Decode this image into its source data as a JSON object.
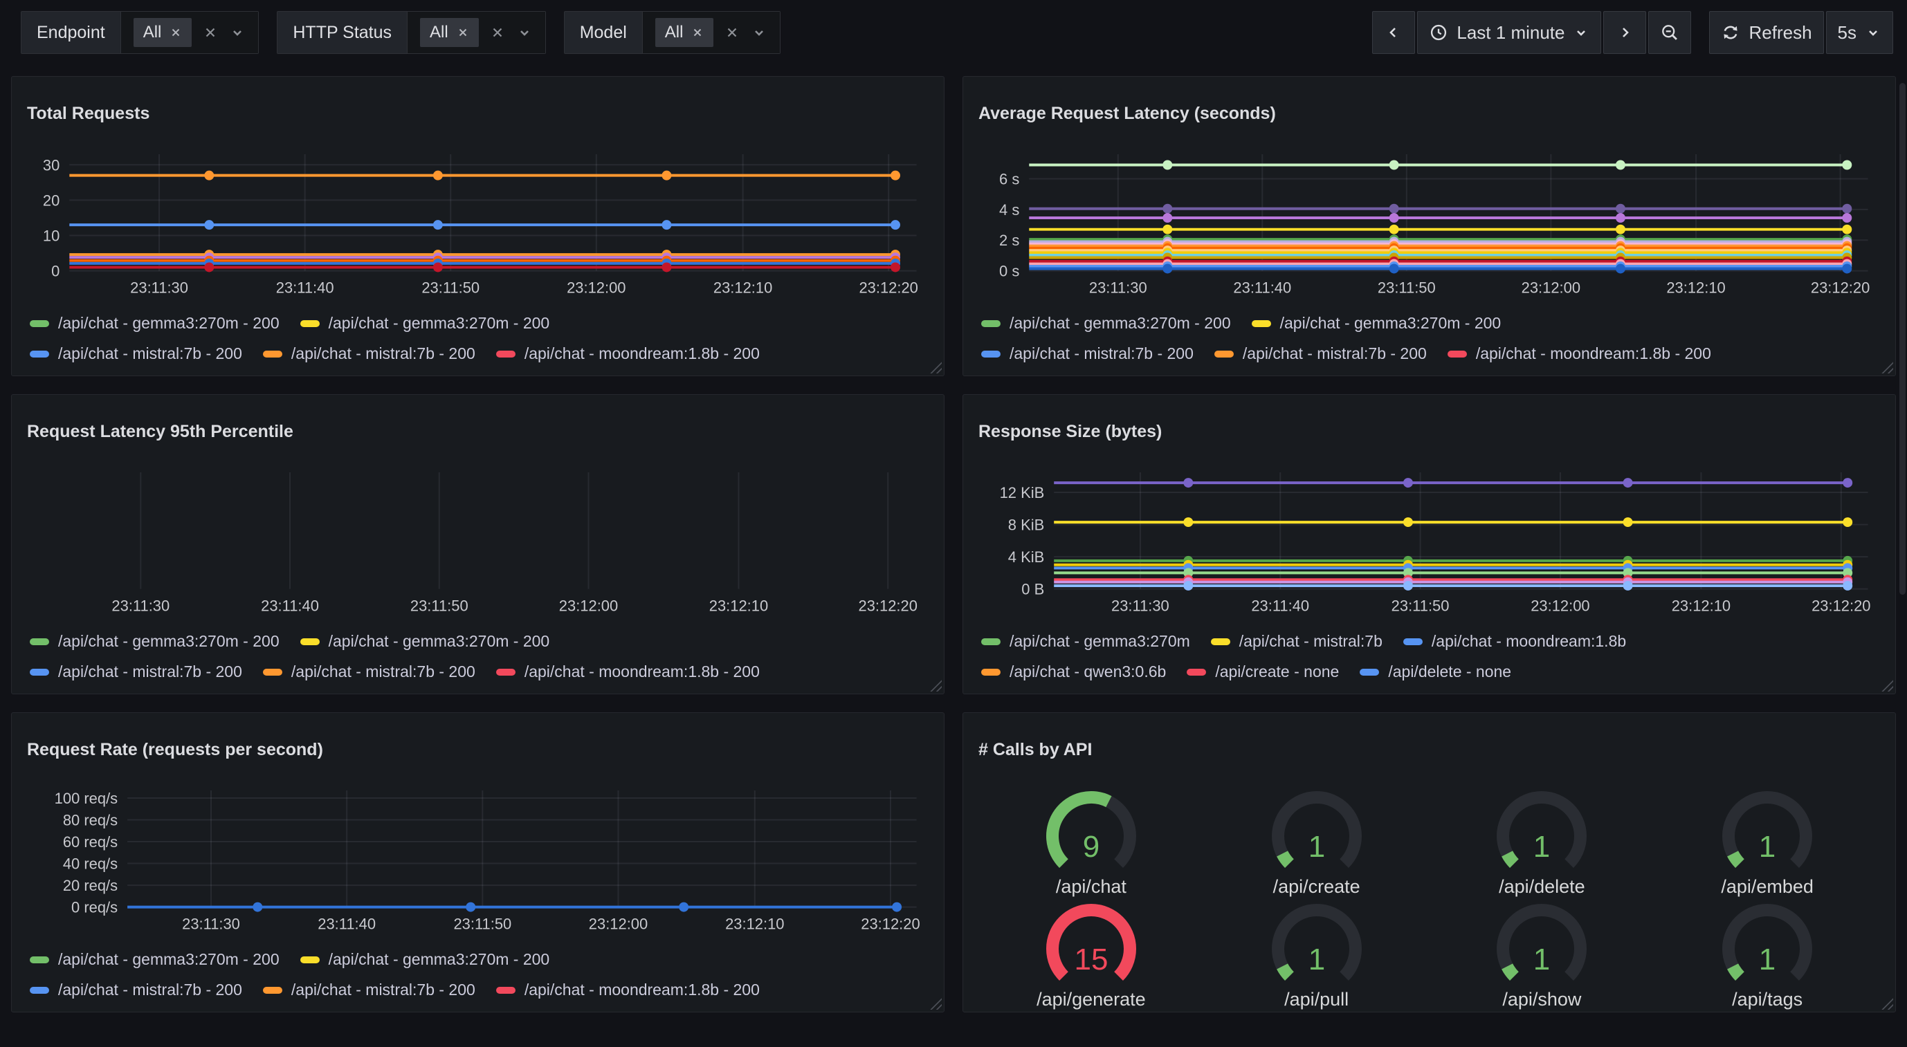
{
  "toolbar": {
    "filters": [
      {
        "label": "Endpoint",
        "chip": "All"
      },
      {
        "label": "HTTP Status",
        "chip": "All"
      },
      {
        "label": "Model",
        "chip": "All"
      }
    ],
    "time": {
      "range": "Last 1 minute",
      "refresh": "Refresh",
      "interval": "5s"
    }
  },
  "chart_data": [
    {
      "type": "line",
      "title": "Total Requests",
      "x_ticks": [
        "23:11:30",
        "23:11:40",
        "23:11:50",
        "23:12:00",
        "23:12:10",
        "23:12:20"
      ],
      "y_ticks": [
        {
          "value": 0,
          "label": "0"
        },
        {
          "value": 10,
          "label": "10"
        },
        {
          "value": 20,
          "label": "20"
        },
        {
          "value": 30,
          "label": "30"
        }
      ],
      "y_max": 33,
      "series": [
        {
          "color": "#FF9830",
          "value": 27
        },
        {
          "color": "#5794F2",
          "value": 13
        },
        {
          "color": "#FF9830",
          "value": 4.6
        },
        {
          "color": "#B877D9",
          "value": 3.8
        },
        {
          "color": "#FA6400",
          "value": 2.9
        },
        {
          "color": "#3274D9",
          "value": 2.1
        },
        {
          "color": "#C4162A",
          "value": 1.0
        }
      ],
      "legend": [
        [
          {
            "color": "#73BF69",
            "label": "/api/chat - gemma3:270m - 200"
          },
          {
            "color": "#FADE2A",
            "label": "/api/chat - gemma3:270m - 200"
          }
        ],
        [
          {
            "color": "#5794F2",
            "label": "/api/chat - mistral:7b - 200"
          },
          {
            "color": "#FF9830",
            "label": "/api/chat - mistral:7b - 200"
          },
          {
            "color": "#F2495C",
            "label": "/api/chat - moondream:1.8b - 200"
          }
        ]
      ]
    },
    {
      "type": "line",
      "title": "Average Request Latency (seconds)",
      "x_ticks": [
        "23:11:30",
        "23:11:40",
        "23:11:50",
        "23:12:00",
        "23:12:10",
        "23:12:20"
      ],
      "y_ticks": [
        {
          "value": 0,
          "label": "0 s"
        },
        {
          "value": 2,
          "label": "2 s"
        },
        {
          "value": 4,
          "label": "4 s"
        },
        {
          "value": 6,
          "label": "6 s"
        }
      ],
      "y_max": 7.6,
      "series": [
        {
          "color": "#C8F2C2",
          "value": 6.9
        },
        {
          "color": "#705DA0",
          "value": 4.05
        },
        {
          "color": "#B877D9",
          "value": 3.45
        },
        {
          "color": "#FADE2A",
          "value": 2.7
        },
        {
          "color": "#56A64B",
          "value": 2.05
        },
        {
          "color": "#B8AFE0",
          "value": 1.9
        },
        {
          "color": "#F5B6D8",
          "value": 1.75
        },
        {
          "color": "#FF9830",
          "value": 1.62
        },
        {
          "color": "#FA6400",
          "value": 1.48
        },
        {
          "color": "#FFCB7D",
          "value": 1.33
        },
        {
          "color": "#F2CC0C",
          "value": 1.18
        },
        {
          "color": "#6ED0E0",
          "value": 1.02
        },
        {
          "color": "#CCA300",
          "value": 0.86
        },
        {
          "color": "#C4162A",
          "value": 0.62
        },
        {
          "color": "#FFA6B0",
          "value": 0.45
        },
        {
          "color": "#5794F2",
          "value": 0.3
        },
        {
          "color": "#1F60C4",
          "value": 0.14
        }
      ],
      "legend": [
        [
          {
            "color": "#73BF69",
            "label": "/api/chat - gemma3:270m - 200"
          },
          {
            "color": "#FADE2A",
            "label": "/api/chat - gemma3:270m - 200"
          }
        ],
        [
          {
            "color": "#5794F2",
            "label": "/api/chat - mistral:7b - 200"
          },
          {
            "color": "#FF9830",
            "label": "/api/chat - mistral:7b - 200"
          },
          {
            "color": "#F2495C",
            "label": "/api/chat - moondream:1.8b - 200"
          }
        ]
      ]
    },
    {
      "type": "line",
      "title": "Request Latency 95th Percentile",
      "x_ticks": [
        "23:11:30",
        "23:11:40",
        "23:11:50",
        "23:12:00",
        "23:12:10",
        "23:12:20"
      ],
      "y_ticks": [],
      "y_max": 1,
      "series": [],
      "legend": [
        [
          {
            "color": "#73BF69",
            "label": "/api/chat - gemma3:270m - 200"
          },
          {
            "color": "#FADE2A",
            "label": "/api/chat - gemma3:270m - 200"
          }
        ],
        [
          {
            "color": "#5794F2",
            "label": "/api/chat - mistral:7b - 200"
          },
          {
            "color": "#FF9830",
            "label": "/api/chat - mistral:7b - 200"
          },
          {
            "color": "#F2495C",
            "label": "/api/chat - moondream:1.8b - 200"
          }
        ]
      ]
    },
    {
      "type": "line",
      "title": "Response Size (bytes)",
      "x_ticks": [
        "23:11:30",
        "23:11:40",
        "23:11:50",
        "23:12:00",
        "23:12:10",
        "23:12:20"
      ],
      "y_ticks": [
        {
          "value": 0,
          "label": "0 B"
        },
        {
          "value": 4,
          "label": "4 KiB"
        },
        {
          "value": 8,
          "label": "8 KiB"
        },
        {
          "value": 12,
          "label": "12 KiB"
        }
      ],
      "y_max": 14.5,
      "series": [
        {
          "color": "#7A64C9",
          "value": 13.2
        },
        {
          "color": "#FADE2A",
          "value": 8.3
        },
        {
          "color": "#56A64B",
          "value": 3.5
        },
        {
          "color": "#F2CC0C",
          "value": 3.0
        },
        {
          "color": "#5794F2",
          "value": 2.6
        },
        {
          "color": "#96D98D",
          "value": 2.0
        },
        {
          "color": "#F2495C",
          "value": 1.15
        },
        {
          "color": "#CA95E5",
          "value": 0.85
        },
        {
          "color": "#8AB8FF",
          "value": 0.4
        }
      ],
      "legend": [
        [
          {
            "color": "#73BF69",
            "label": "/api/chat - gemma3:270m"
          },
          {
            "color": "#FADE2A",
            "label": "/api/chat - mistral:7b"
          },
          {
            "color": "#5794F2",
            "label": "/api/chat - moondream:1.8b"
          }
        ],
        [
          {
            "color": "#FF9830",
            "label": "/api/chat - qwen3:0.6b"
          },
          {
            "color": "#F2495C",
            "label": "/api/create - none"
          },
          {
            "color": "#5794F2",
            "label": "/api/delete - none"
          }
        ]
      ]
    },
    {
      "type": "line",
      "title": "Request Rate (requests per second)",
      "x_ticks": [
        "23:11:30",
        "23:11:40",
        "23:11:50",
        "23:12:00",
        "23:12:10",
        "23:12:20"
      ],
      "y_ticks": [
        {
          "value": 0,
          "label": "0 req/s"
        },
        {
          "value": 20,
          "label": "20 req/s"
        },
        {
          "value": 40,
          "label": "40 req/s"
        },
        {
          "value": 60,
          "label": "60 req/s"
        },
        {
          "value": 80,
          "label": "80 req/s"
        },
        {
          "value": 100,
          "label": "100 req/s"
        }
      ],
      "y_max": 107,
      "series": [
        {
          "color": "#3274D9",
          "value": 0
        }
      ],
      "legend": [
        [
          {
            "color": "#73BF69",
            "label": "/api/chat - gemma3:270m - 200"
          },
          {
            "color": "#FADE2A",
            "label": "/api/chat - gemma3:270m - 200"
          }
        ],
        [
          {
            "color": "#5794F2",
            "label": "/api/chat - mistral:7b - 200"
          },
          {
            "color": "#FF9830",
            "label": "/api/chat - mistral:7b - 200"
          },
          {
            "color": "#F2495C",
            "label": "/api/chat - moondream:1.8b - 200"
          }
        ]
      ]
    },
    {
      "type": "gauge",
      "title": "# Calls by API",
      "max": 15,
      "gauges": [
        {
          "label": "/api/chat",
          "value": 9,
          "color": "#73BF69"
        },
        {
          "label": "/api/create",
          "value": 1,
          "color": "#73BF69"
        },
        {
          "label": "/api/delete",
          "value": 1,
          "color": "#73BF69"
        },
        {
          "label": "/api/embed",
          "value": 1,
          "color": "#73BF69"
        },
        {
          "label": "/api/generate",
          "value": 15,
          "color": "#F2495C"
        },
        {
          "label": "/api/pull",
          "value": 1,
          "color": "#73BF69"
        },
        {
          "label": "/api/show",
          "value": 1,
          "color": "#73BF69"
        },
        {
          "label": "/api/tags",
          "value": 1,
          "color": "#73BF69"
        }
      ]
    }
  ]
}
